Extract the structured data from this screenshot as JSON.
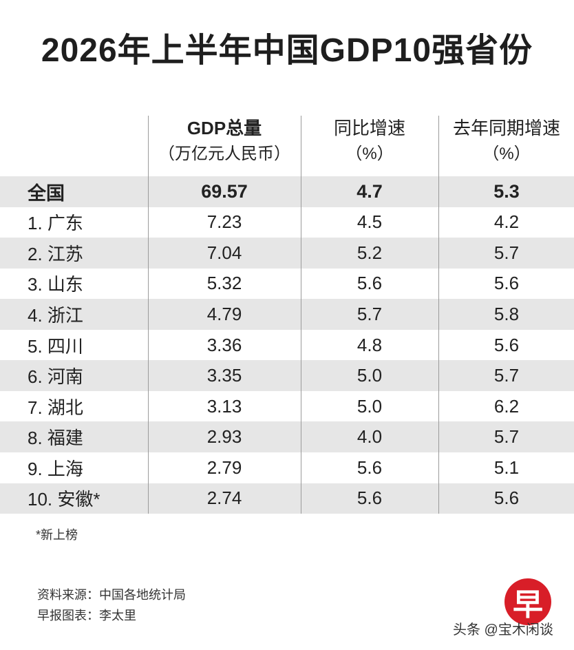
{
  "chart_data": {
    "type": "table",
    "title": "2026年上半年中国GDP10强省份",
    "columns": [
      {
        "label": "GDP总量",
        "unit": "（万亿元人民币）"
      },
      {
        "label": "同比增速",
        "unit": "（%）"
      },
      {
        "label": "去年同期增速",
        "unit": "（%）"
      }
    ],
    "rows": [
      {
        "name": "全国",
        "gdp": "69.57",
        "yoy": "4.7",
        "last": "5.3"
      },
      {
        "name": "1. 广东",
        "gdp": "7.23",
        "yoy": "4.5",
        "last": "4.2"
      },
      {
        "name": "2. 江苏",
        "gdp": "7.04",
        "yoy": "5.2",
        "last": "5.7"
      },
      {
        "name": "3. 山东",
        "gdp": "5.32",
        "yoy": "5.6",
        "last": "5.6"
      },
      {
        "name": "4. 浙江",
        "gdp": "4.79",
        "yoy": "5.7",
        "last": "5.8"
      },
      {
        "name": "5. 四川",
        "gdp": "3.36",
        "yoy": "4.8",
        "last": "5.6"
      },
      {
        "name": "6. 河南",
        "gdp": "3.35",
        "yoy": "5.0",
        "last": "5.7"
      },
      {
        "name": "7. 湖北",
        "gdp": "3.13",
        "yoy": "5.0",
        "last": "6.2"
      },
      {
        "name": "8. 福建",
        "gdp": "2.93",
        "yoy": "4.0",
        "last": "5.7"
      },
      {
        "name": "9. 上海",
        "gdp": "2.79",
        "yoy": "5.6",
        "last": "5.1"
      },
      {
        "name": "10. 安徽*",
        "gdp": "2.74",
        "yoy": "5.6",
        "last": "5.6"
      }
    ],
    "note": "*新上榜"
  },
  "footer": {
    "source": "资料来源：中国各地统计局",
    "chart_by": "早报图表：李太里"
  },
  "logo": {
    "glyph": "早",
    "color": "#d81e28"
  },
  "watermark": "头条 @宝木闲谈",
  "colors": {
    "row_shade": "#e6e6e6",
    "divider": "#9a9a9a"
  }
}
